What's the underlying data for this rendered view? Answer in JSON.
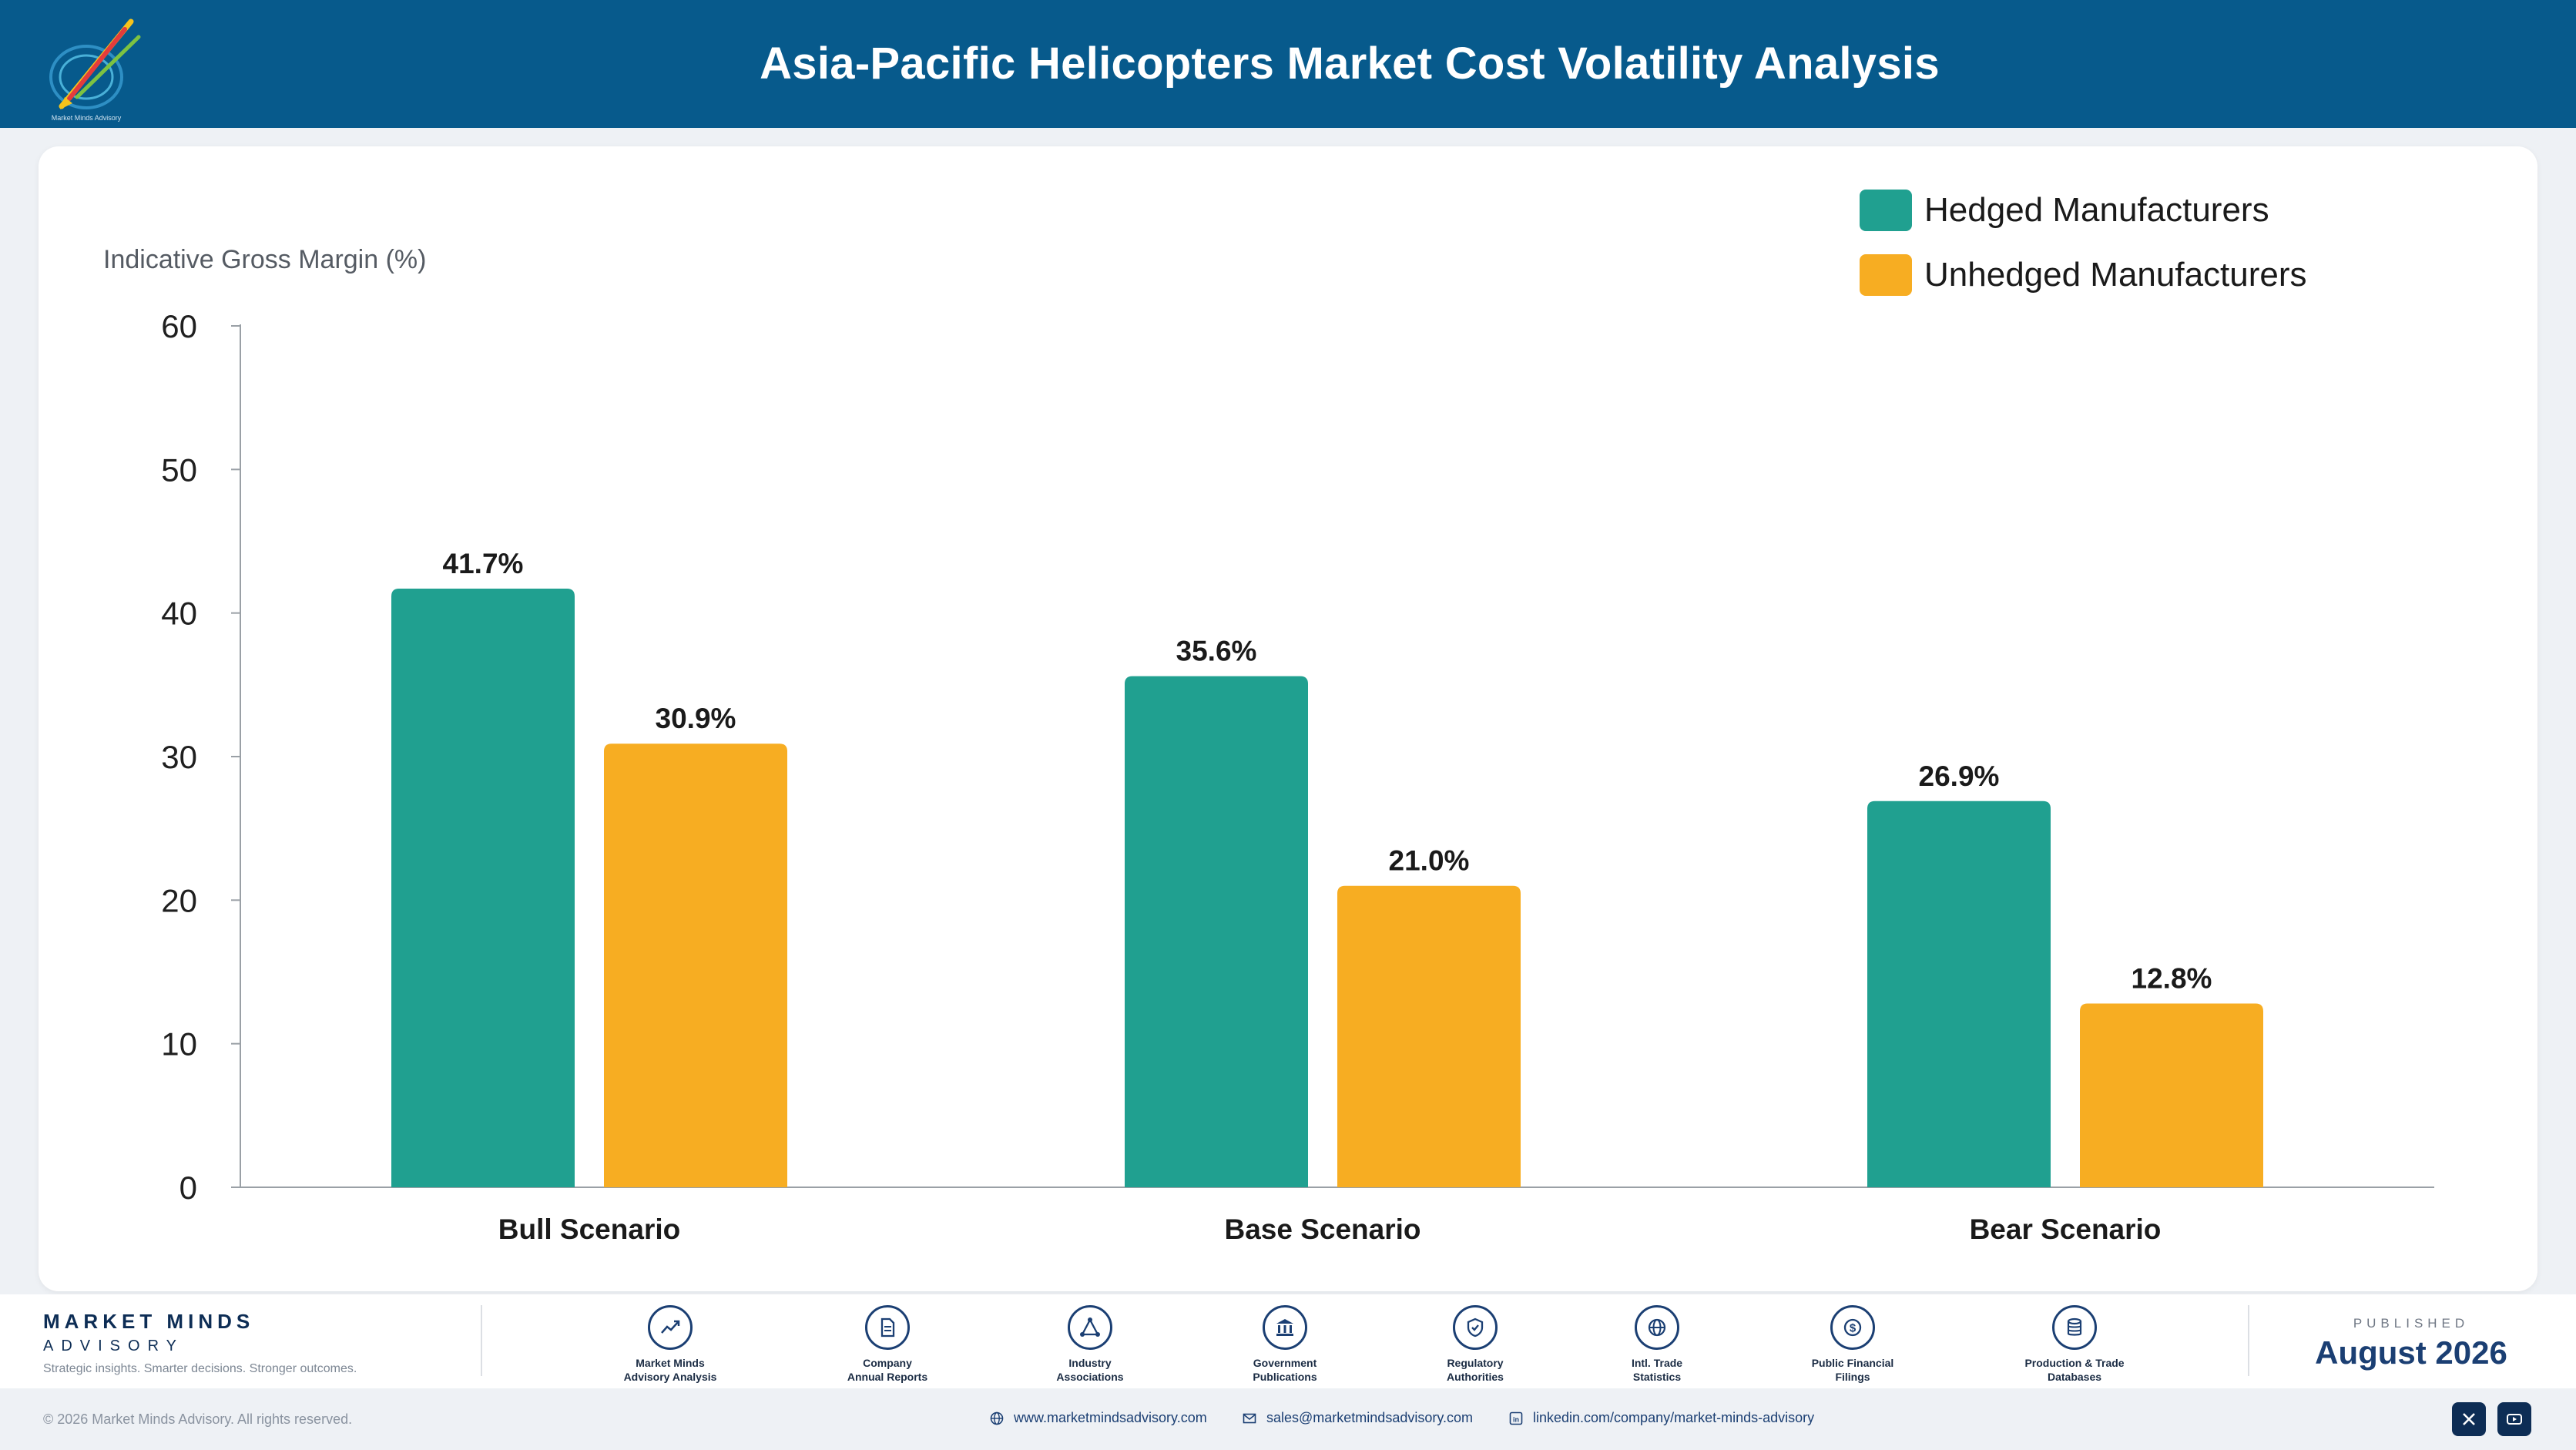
{
  "header": {
    "title": "Asia-Pacific Helicopters Market Cost Volatility Analysis",
    "logo_text": "Market Minds Advisory"
  },
  "colors": {
    "header_bg": "#075a8c",
    "hedged": "#20a090",
    "unhedged": "#f7ad22",
    "brand": "#1b3f73"
  },
  "chart_data": {
    "type": "bar",
    "title": "",
    "ylabel": "Indicative Gross Margin (%)",
    "xlabel": "",
    "ylim": [
      0,
      60
    ],
    "yticks": [
      "0",
      "10",
      "20",
      "30",
      "40",
      "50",
      "60"
    ],
    "categories": [
      "Bull Scenario",
      "Base Scenario",
      "Bear Scenario"
    ],
    "series": [
      {
        "name": "Hedged Manufacturers",
        "values": [
          41.7,
          35.6,
          26.9
        ],
        "labels": [
          "41.7%",
          "35.6%",
          "26.9%"
        ],
        "color": "#20a090"
      },
      {
        "name": "Unhedged Manufacturers",
        "values": [
          30.9,
          21.0,
          12.8
        ],
        "labels": [
          "30.9%",
          "21.0%",
          "12.8%"
        ],
        "color": "#f7ad22"
      }
    ],
    "legend": "top-right",
    "grid": false
  },
  "footer": {
    "brand_name": "MARKET MINDS",
    "brand_sub": "ADVISORY",
    "tagline": "Strategic insights. Smarter decisions. Stronger outcomes.",
    "sources": [
      {
        "label": "Market Minds\nAdvisory Analysis",
        "icon": "trend-chart-icon"
      },
      {
        "label": "Company\nAnnual Reports",
        "icon": "document-icon"
      },
      {
        "label": "Industry\nAssociations",
        "icon": "network-icon"
      },
      {
        "label": "Government\nPublications",
        "icon": "government-building-icon"
      },
      {
        "label": "Regulatory\nAuthorities",
        "icon": "shield-check-icon"
      },
      {
        "label": "Intl. Trade\nStatistics",
        "icon": "globe-icon"
      },
      {
        "label": "Public Financial\nFilings",
        "icon": "dollar-coin-icon"
      },
      {
        "label": "Production & Trade\nDatabases",
        "icon": "database-icon"
      }
    ],
    "published_label": "PUBLISHED",
    "published_date": "August 2026"
  },
  "bottom": {
    "copyright": "© 2026 Market Minds Advisory. All rights reserved.",
    "website": "www.marketmindsadvisory.com",
    "email": "sales@marketmindsadvisory.com",
    "linkedin": "linkedin.com/company/market-minds-advisory"
  }
}
